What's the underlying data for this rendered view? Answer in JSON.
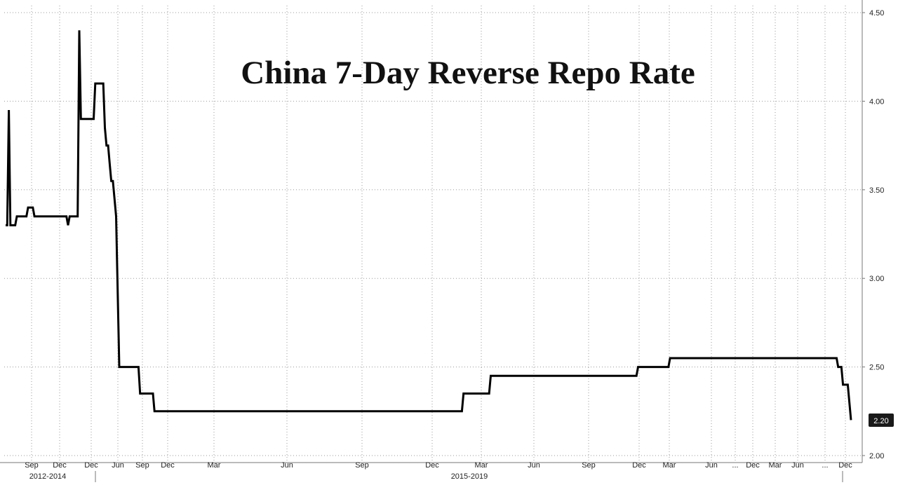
{
  "chart_data": {
    "type": "line",
    "title": "China 7-Day Reverse Repo Rate",
    "xlabel": "",
    "ylabel": "",
    "ylim": [
      2.0,
      4.5
    ],
    "y_ticks": [
      "2.00",
      "2.50",
      "3.00",
      "3.50",
      "4.00",
      "4.50"
    ],
    "x_ticks": [
      "Sep",
      "Dec",
      "Dec",
      "Jun",
      "Sep",
      "Dec",
      "Mar",
      "Jun",
      "Sep",
      "Dec",
      "Mar",
      "Jun",
      "Sep",
      "Dec",
      "Mar",
      "Jun",
      "...",
      "Dec",
      "Mar",
      "Jun",
      "...",
      "Dec"
    ],
    "x_periods": [
      "2012-2014",
      "2015-2019"
    ],
    "grid": true,
    "last_value_label": "2.20",
    "colors": {
      "line": "#000000",
      "grid": "#9a9a9a",
      "badge": "#1a1a1a"
    },
    "series": [
      {
        "points": [
          [
            0,
            3.3
          ],
          [
            1,
            3.3
          ],
          [
            2,
            3.95
          ],
          [
            3,
            3.3
          ],
          [
            6,
            3.3
          ],
          [
            7,
            3.35
          ],
          [
            13,
            3.35
          ],
          [
            14,
            3.4
          ],
          [
            17,
            3.4
          ],
          [
            18,
            3.35
          ],
          [
            38,
            3.35
          ],
          [
            39,
            3.3
          ],
          [
            40,
            3.35
          ],
          [
            45,
            3.35
          ],
          [
            46,
            4.4
          ],
          [
            47,
            3.9
          ],
          [
            55,
            3.9
          ],
          [
            56,
            4.1
          ],
          [
            61,
            4.1
          ],
          [
            62,
            3.85
          ],
          [
            63,
            3.75
          ],
          [
            64,
            3.75
          ],
          [
            65,
            3.65
          ],
          [
            66,
            3.55
          ],
          [
            67,
            3.55
          ],
          [
            68,
            3.45
          ],
          [
            69,
            3.35
          ],
          [
            71,
            2.5
          ],
          [
            83,
            2.5
          ],
          [
            84,
            2.35
          ],
          [
            92,
            2.35
          ],
          [
            93,
            2.25
          ],
          [
            285,
            2.25
          ],
          [
            286,
            2.35
          ],
          [
            302,
            2.35
          ],
          [
            303,
            2.45
          ],
          [
            394,
            2.45
          ],
          [
            395,
            2.5
          ],
          [
            414,
            2.5
          ],
          [
            415,
            2.55
          ],
          [
            519,
            2.55
          ],
          [
            520,
            2.5
          ],
          [
            522,
            2.5
          ],
          [
            523,
            2.4
          ],
          [
            526,
            2.4
          ],
          [
            528,
            2.2
          ]
        ]
      }
    ]
  }
}
